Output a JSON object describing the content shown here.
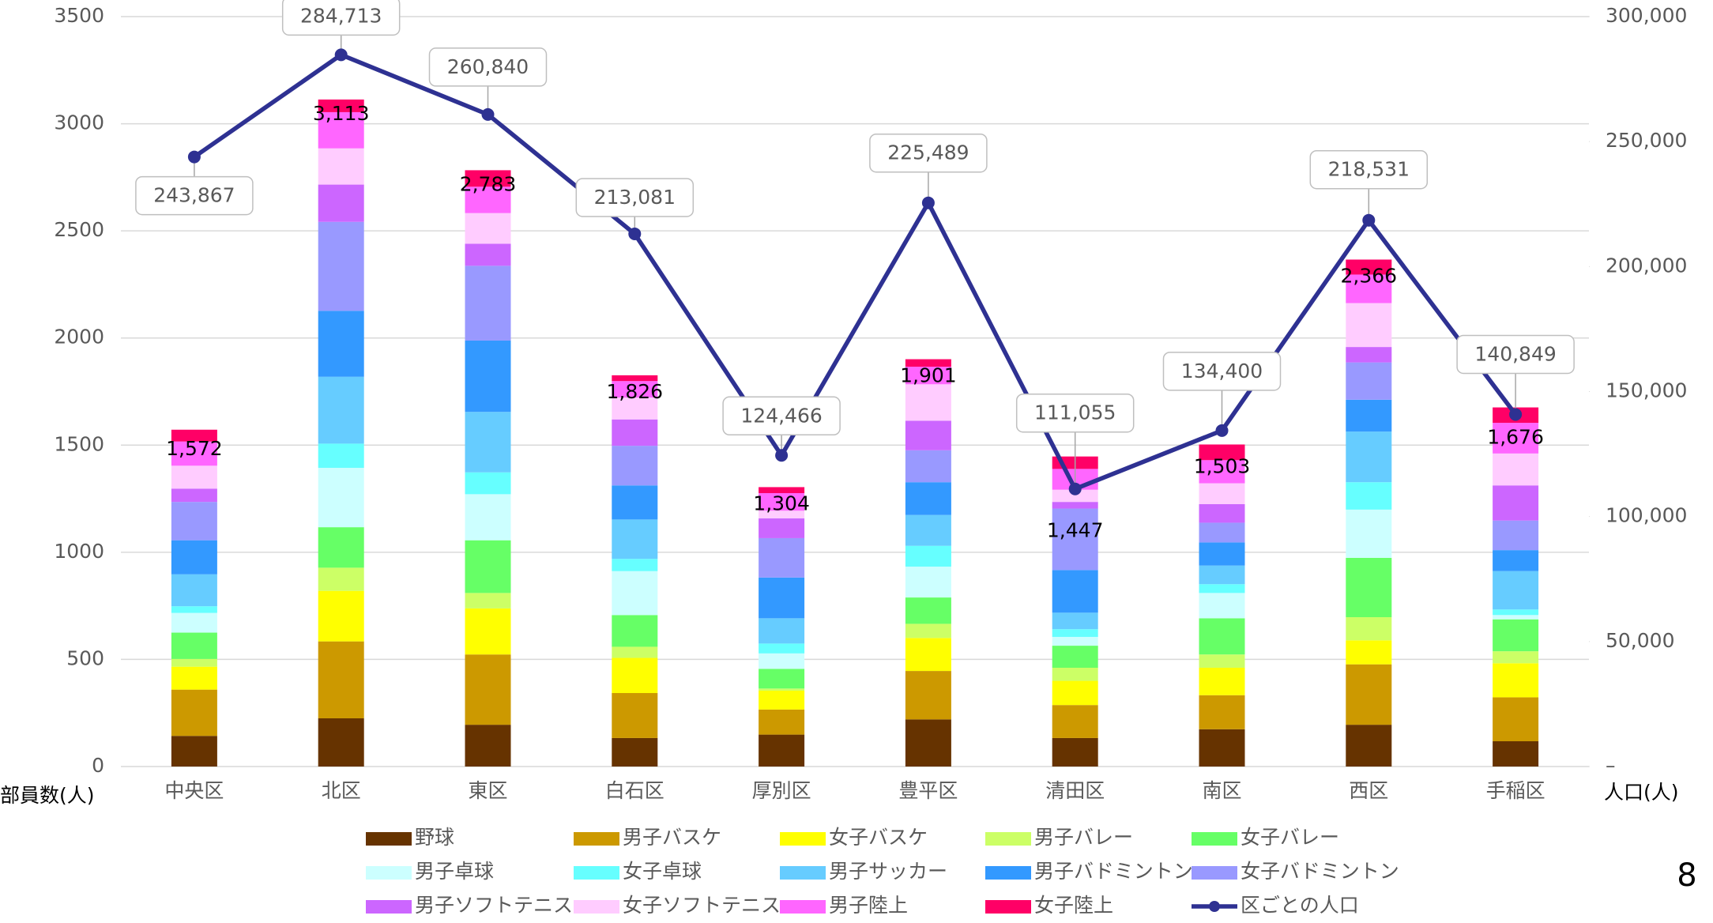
{
  "chart_data": {
    "type": "bar",
    "categories": [
      "中央区",
      "北区",
      "東区",
      "白石区",
      "厚別区",
      "豊平区",
      "清田区",
      "南区",
      "西区",
      "手稲区"
    ],
    "ylabel": "部員数(人)",
    "y2label": "人口(人)",
    "ylim": [
      0,
      3500
    ],
    "yticks": [
      0,
      500,
      1000,
      1500,
      2000,
      2500,
      3000,
      3500
    ],
    "y2lim": [
      0,
      300000
    ],
    "y2ticks": [
      {
        "value": 0,
        "label": "–"
      },
      {
        "value": 50000,
        "label": "50,000"
      },
      {
        "value": 100000,
        "label": "100,000"
      },
      {
        "value": 150000,
        "label": "150,000"
      },
      {
        "value": 200000,
        "label": "200,000"
      },
      {
        "value": 250000,
        "label": "250,000"
      },
      {
        "value": 300000,
        "label": "300,000"
      }
    ],
    "grid": true,
    "stacked": true,
    "series": [
      {
        "name": "野球",
        "color": "#663300",
        "values": [
          143,
          225,
          195,
          133,
          149,
          220,
          133,
          174,
          195,
          118
        ]
      },
      {
        "name": "男子バスケ",
        "color": "#cc9900",
        "values": [
          216,
          359,
          328,
          210,
          117,
          226,
          154,
          159,
          282,
          205
        ]
      },
      {
        "name": "女子バスケ",
        "color": "#ffff00",
        "values": [
          107,
          236,
          215,
          164,
          88,
          154,
          113,
          128,
          112,
          159
        ]
      },
      {
        "name": "男子バレー",
        "color": "#ccff66",
        "values": [
          36,
          108,
          72,
          52,
          10,
          66,
          61,
          62,
          108,
          56
        ]
      },
      {
        "name": "女子バレー",
        "color": "#66ff66",
        "values": [
          123,
          189,
          246,
          148,
          92,
          123,
          103,
          169,
          277,
          149
        ]
      },
      {
        "name": "男子卓球",
        "color": "#ccffff",
        "values": [
          92,
          277,
          215,
          205,
          72,
          144,
          41,
          118,
          225,
          20
        ]
      },
      {
        "name": "女子卓球",
        "color": "#66ffff",
        "values": [
          31,
          113,
          102,
          57,
          46,
          97,
          36,
          41,
          128,
          26
        ]
      },
      {
        "name": "男子サッカー",
        "color": "#66ccff",
        "values": [
          149,
          312,
          282,
          184,
          118,
          144,
          77,
          87,
          236,
          179
        ]
      },
      {
        "name": "男子バドミントン",
        "color": "#3399ff",
        "values": [
          159,
          308,
          333,
          159,
          190,
          153,
          199,
          108,
          149,
          98
        ]
      },
      {
        "name": "女子バドミントン",
        "color": "#9999ff",
        "values": [
          179,
          415,
          349,
          185,
          184,
          149,
          287,
          92,
          174,
          138
        ]
      },
      {
        "name": "男子ソフトテニス",
        "color": "#cc66ff",
        "values": [
          62,
          174,
          103,
          123,
          92,
          138,
          31,
          87,
          72,
          164
        ]
      },
      {
        "name": "女子ソフトテニス",
        "color": "#ffccff",
        "values": [
          107,
          169,
          143,
          102,
          36,
          170,
          57,
          97,
          205,
          149
        ]
      },
      {
        "name": "男子陸上",
        "color": "#ff66ff",
        "values": [
          113,
          169,
          123,
          77,
          82,
          82,
          97,
          108,
          133,
          143
        ]
      },
      {
        "name": "女子陸上",
        "color": "#ff0066",
        "values": [
          55,
          59,
          77,
          27,
          28,
          35,
          58,
          73,
          70,
          72
        ]
      },
      {
        "name": "区ごとの人口",
        "color": "#2e3192",
        "type": "line",
        "axis": "y2",
        "values": [
          243867,
          284713,
          260840,
          213081,
          124466,
          225489,
          111055,
          134400,
          218531,
          140849
        ],
        "value_labels": [
          "243,867",
          "284,713",
          "260,840",
          "213,081",
          "124,466",
          "225,489",
          "111,055",
          "134,400",
          "218,531",
          "140,849"
        ]
      }
    ],
    "totals": {
      "values": [
        1572,
        3113,
        2783,
        1826,
        1304,
        1901,
        1447,
        1503,
        2366,
        1676
      ],
      "value_labels": [
        "1,572",
        "3,113",
        "2,783",
        "1,826",
        "1,304",
        "1,901",
        "1,447",
        "1,503",
        "2,366",
        "1,676"
      ]
    }
  },
  "page_number": "8"
}
